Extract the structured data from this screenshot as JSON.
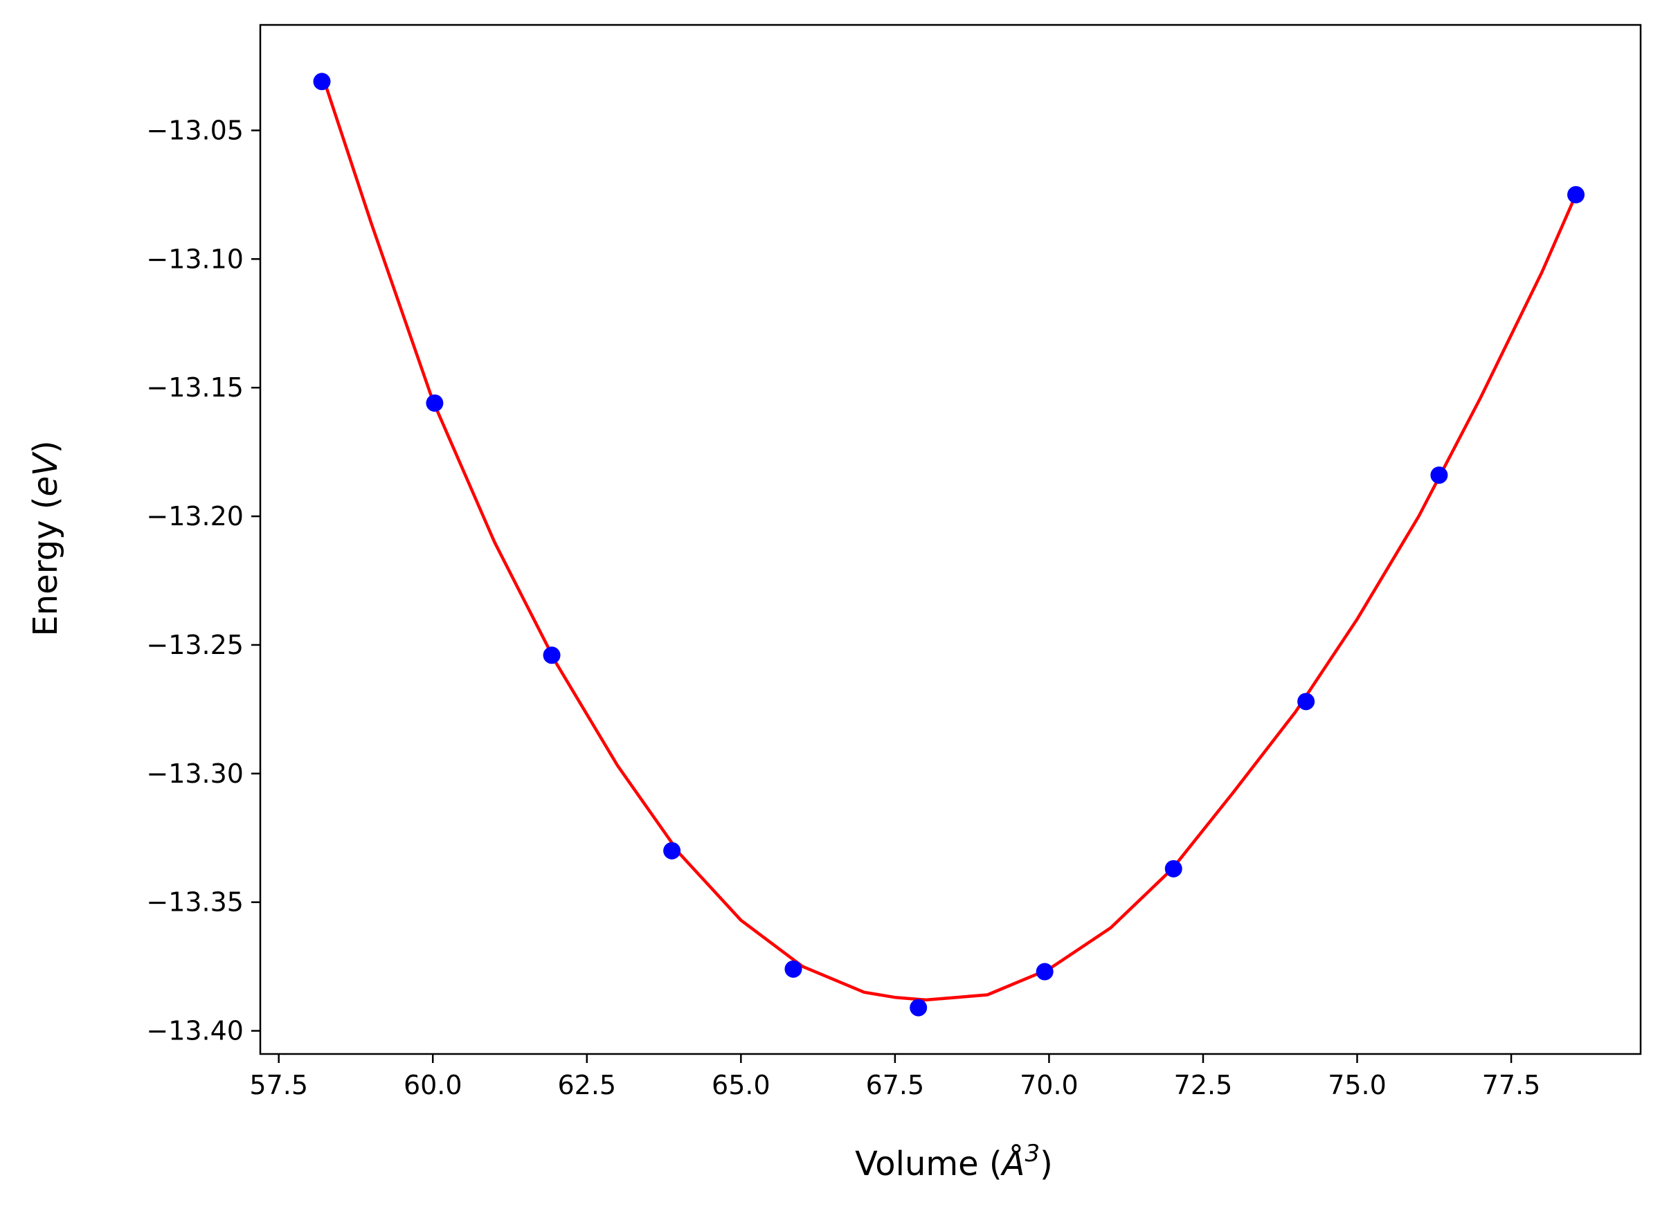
{
  "chart_data": {
    "type": "scatter",
    "title": "",
    "xlabel_text": "Volume (",
    "xlabel_math": "Å",
    "xlabel_sup": "3",
    "xlabel_close": ")",
    "ylabel_text": "Energy (",
    "ylabel_math": "eV",
    "ylabel_close": ")",
    "xlim": [
      57.2,
      79.6
    ],
    "ylim": [
      -13.409,
      -13.009
    ],
    "x_ticks": [
      57.5,
      60.0,
      62.5,
      65.0,
      67.5,
      70.0,
      72.5,
      75.0,
      77.5
    ],
    "x_tick_labels": [
      "57.5",
      "60.0",
      "62.5",
      "65.0",
      "67.5",
      "70.0",
      "72.5",
      "75.0",
      "77.5"
    ],
    "y_ticks": [
      -13.05,
      -13.1,
      -13.15,
      -13.2,
      -13.25,
      -13.3,
      -13.35,
      -13.4
    ],
    "y_tick_labels": [
      "−13.05",
      "−13.10",
      "−13.15",
      "−13.20",
      "−13.25",
      "−13.30",
      "−13.35",
      "−13.40"
    ],
    "grid": false,
    "series": [
      {
        "kind": "points",
        "color": "#0000ff",
        "x": [
          58.2,
          60.03,
          61.93,
          63.88,
          65.85,
          67.88,
          69.93,
          72.02,
          74.17,
          76.33,
          78.55
        ],
        "y": [
          -13.031,
          -13.156,
          -13.254,
          -13.33,
          -13.376,
          -13.391,
          -13.377,
          -13.337,
          -13.272,
          -13.184,
          -13.075
        ]
      },
      {
        "kind": "fit-curve",
        "color": "#ff0000",
        "x": [
          58.2,
          59.0,
          60.0,
          61.0,
          62.0,
          63.0,
          64.0,
          65.0,
          66.0,
          67.0,
          67.5,
          68.0,
          68.5,
          69.0,
          70.0,
          71.0,
          72.0,
          73.0,
          74.0,
          75.0,
          76.0,
          77.0,
          78.0,
          78.55
        ],
        "y": [
          -13.028,
          -13.086,
          -13.155,
          -13.21,
          -13.257,
          -13.297,
          -13.331,
          -13.357,
          -13.375,
          -13.385,
          -13.387,
          -13.388,
          -13.387,
          -13.386,
          -13.376,
          -13.36,
          -13.337,
          -13.307,
          -13.276,
          -13.24,
          -13.2,
          -13.154,
          -13.105,
          -13.075
        ]
      }
    ]
  }
}
